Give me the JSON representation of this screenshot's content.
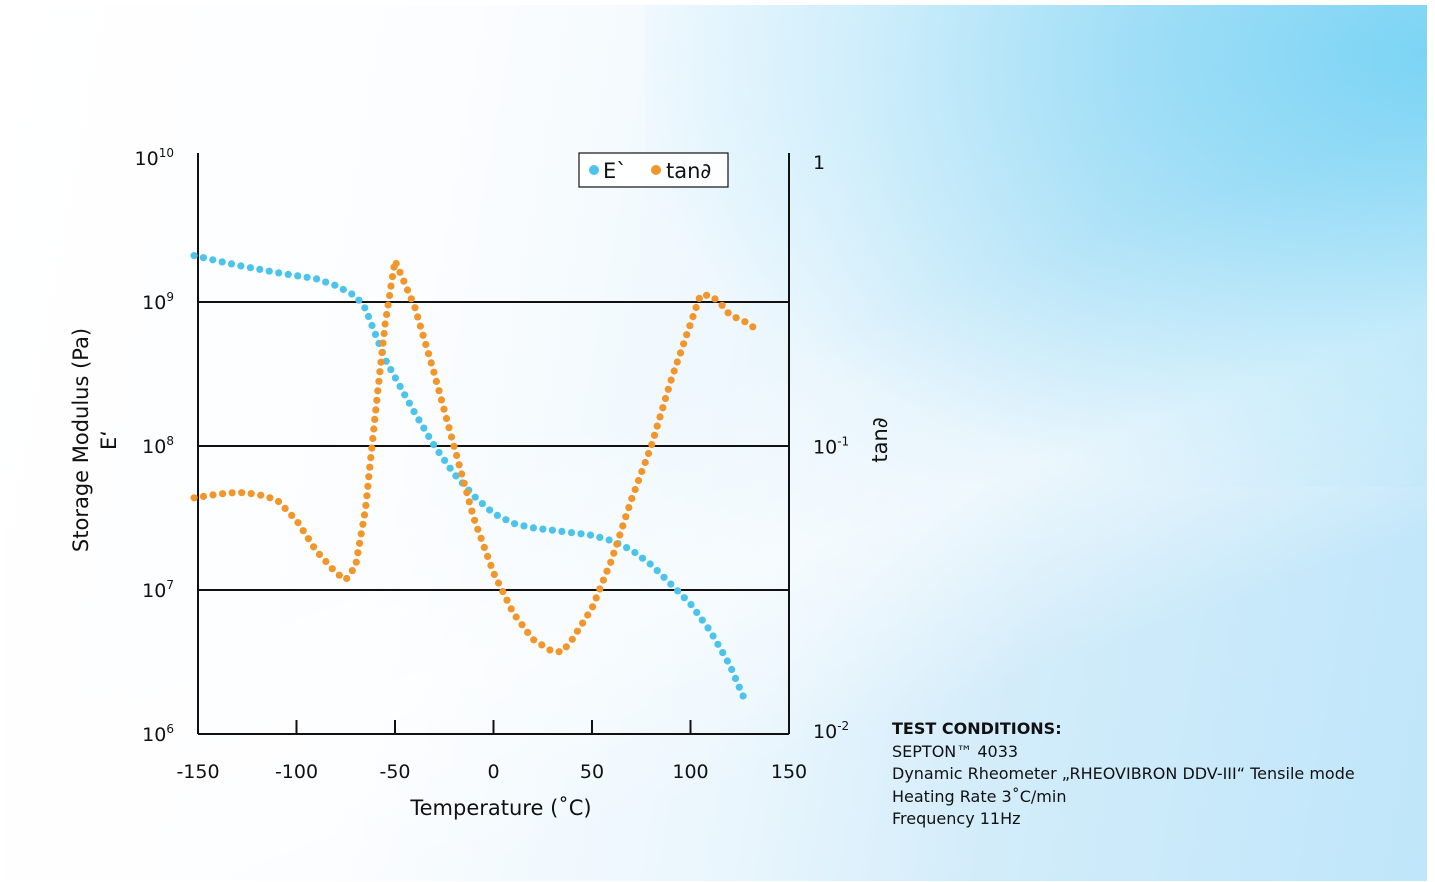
{
  "chart_data": {
    "type": "scatter",
    "xlabel": "Temperature (˚C)",
    "ylabel_left": "Storage Modulus (Pa)",
    "ylabel_left_sub": "E‘",
    "ylabel_right": "tan∂",
    "x_ticks": [
      "-150",
      "-100",
      "-50",
      "0",
      "50",
      "100",
      "150"
    ],
    "xlim": [
      -150,
      150
    ],
    "y_left_ticks": [
      {
        "base": "10",
        "exp": "10"
      },
      {
        "base": "10",
        "exp": "9"
      },
      {
        "base": "10",
        "exp": "8"
      },
      {
        "base": "10",
        "exp": "7"
      },
      {
        "base": "10",
        "exp": "6"
      }
    ],
    "ylim_left": [
      1000000,
      10000000000
    ],
    "y_left_scale": "log",
    "y_right_ticks": [
      {
        "base": "1",
        "exp": ""
      },
      {
        "base": "10",
        "exp": "-1"
      },
      {
        "base": "10",
        "exp": "-2"
      }
    ],
    "ylim_right": [
      0.01,
      1
    ],
    "y_right_scale": "log",
    "gridlines_left": [
      1000000000,
      100000000,
      10000000
    ],
    "legend_position": "top-right",
    "series": [
      {
        "name": "E`",
        "axis": "left",
        "color": "#4cc3ea",
        "x": [
          -152,
          -130,
          -110,
          -90,
          -80,
          -70,
          -65,
          -60,
          -55,
          -50,
          -40,
          -30,
          -20,
          -10,
          0,
          10,
          20,
          30,
          40,
          50,
          60,
          70,
          80,
          90,
          100,
          110,
          120,
          127
        ],
        "y": [
          2100000000,
          1800000000,
          1600000000,
          1450000000,
          1300000000,
          1100000000,
          900000000,
          600000000,
          400000000,
          300000000,
          170000000,
          100000000,
          64000000,
          45000000,
          34000000,
          29000000,
          27000000,
          26000000,
          25000000,
          24000000,
          22000000,
          19000000,
          15000000,
          11000000,
          8000000,
          5200000,
          3000000,
          1800000
        ]
      },
      {
        "name": "tan∂",
        "axis": "right",
        "color": "#f0962a",
        "x": [
          -152,
          -140,
          -130,
          -120,
          -110,
          -100,
          -90,
          -80,
          -75,
          -70,
          -65,
          -60,
          -55,
          -50,
          -40,
          -30,
          -20,
          -10,
          0,
          10,
          20,
          30,
          35,
          40,
          50,
          60,
          70,
          80,
          90,
          100,
          105,
          110,
          115,
          120,
          130,
          135
        ],
        "y": [
          0.066,
          0.068,
          0.069,
          0.068,
          0.065,
          0.055,
          0.043,
          0.036,
          0.034,
          0.038,
          0.06,
          0.13,
          0.27,
          0.45,
          0.31,
          0.18,
          0.1,
          0.056,
          0.036,
          0.026,
          0.021,
          0.019,
          0.019,
          0.021,
          0.027,
          0.04,
          0.065,
          0.1,
          0.17,
          0.27,
          0.34,
          0.34,
          0.32,
          0.29,
          0.27,
          0.25
        ]
      }
    ]
  },
  "conditions": {
    "title": "TEST CONDITIONS:",
    "product": "SEPTON™ 4033",
    "instrument": "Dynamic Rheometer „RHEOVIBRON DDV-III“ Tensile mode",
    "heating": "Heating Rate 3˚C/min",
    "frequency": "Frequency 11Hz"
  }
}
